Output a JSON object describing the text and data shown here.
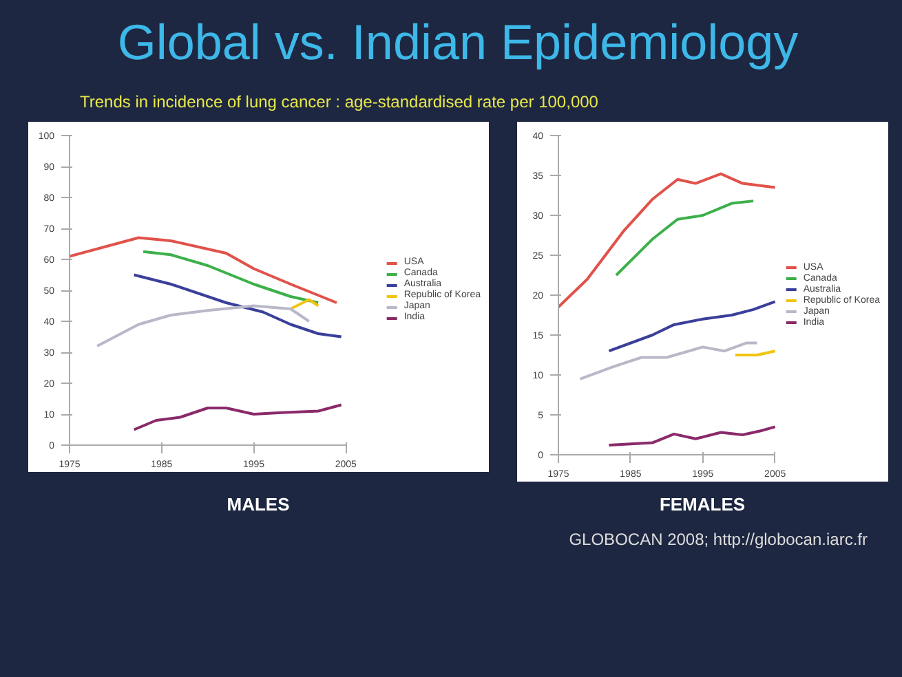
{
  "chart_data": [
    {
      "type": "line",
      "title": "Global vs. Indian Epidemiology",
      "subtitle": "Trends in incidence of lung cancer : age-standardised rate per 100,000",
      "xlabel": "MALES",
      "xlim": [
        1975,
        2005
      ],
      "xticks": [
        1975,
        1985,
        1995,
        2005
      ],
      "ylim": [
        0,
        100
      ],
      "yticks": [
        0,
        10,
        20,
        30,
        40,
        50,
        60,
        70,
        80,
        90,
        100
      ],
      "grid": false,
      "legend": "right",
      "series": [
        {
          "name": "USA",
          "color": "#e0524a",
          "x": [
            1975,
            1982.5,
            1986,
            1992,
            1995,
            1999,
            2004
          ],
          "values": [
            61,
            67,
            66,
            62,
            57,
            52,
            46
          ]
        },
        {
          "name": "Canada",
          "color": "#3cb04a",
          "x": [
            1983,
            1986,
            1990,
            1995,
            1999,
            2002
          ],
          "values": [
            62.5,
            61.5,
            58,
            52,
            48,
            46
          ]
        },
        {
          "name": "Australia",
          "color": "#3a3f9a",
          "x": [
            1982,
            1986,
            1992,
            1996,
            1999,
            2002,
            2004.5
          ],
          "values": [
            55,
            52,
            46,
            43,
            39,
            36,
            35
          ]
        },
        {
          "name": "Republic of Korea",
          "color": "#f2c40f",
          "x": [
            1999,
            2001,
            2002
          ],
          "values": [
            44,
            47,
            45
          ]
        },
        {
          "name": "Japan",
          "color": "#b8b8c8",
          "x": [
            1978,
            1982.5,
            1986,
            1990,
            1995,
            1999,
            2001
          ],
          "values": [
            32,
            39,
            42,
            43.5,
            45,
            44,
            40
          ]
        },
        {
          "name": "India",
          "color": "#8a2a6a",
          "x": [
            1982,
            1984.4,
            1987,
            1990,
            1992,
            1995,
            1998,
            2002,
            2004.5
          ],
          "values": [
            5,
            8,
            9,
            12,
            12,
            10,
            10.5,
            11,
            13
          ]
        }
      ]
    },
    {
      "type": "line",
      "xlabel": "FEMALES",
      "xlim": [
        1975,
        2005
      ],
      "xticks": [
        1975,
        1985,
        1995,
        2005
      ],
      "ylim": [
        0,
        40
      ],
      "yticks": [
        0,
        5,
        10,
        15,
        20,
        25,
        30,
        35,
        40
      ],
      "grid": false,
      "legend": "right",
      "annotations": [
        "GLOBOCAN 2008; http://globocan.iarc.fr"
      ],
      "series": [
        {
          "name": "USA",
          "color": "#e0524a",
          "x": [
            1975,
            1979,
            1984,
            1988,
            1991.5,
            1994,
            1997.5,
            2000.5,
            2005
          ],
          "values": [
            18.5,
            22,
            28,
            32,
            34.5,
            34,
            35.2,
            34,
            33.5
          ]
        },
        {
          "name": "Canada",
          "color": "#3cb04a",
          "x": [
            1983,
            1988,
            1991.5,
            1995,
            1999,
            2002
          ],
          "values": [
            22.5,
            27,
            29.5,
            30,
            31.5,
            31.8
          ]
        },
        {
          "name": "Australia",
          "color": "#3a3f9a",
          "x": [
            1982,
            1988,
            1991,
            1995,
            1999,
            2002,
            2005
          ],
          "values": [
            13,
            15,
            16.3,
            17,
            17.5,
            18.2,
            19.2
          ]
        },
        {
          "name": "Republic of Korea",
          "color": "#f2c40f",
          "x": [
            1999.5,
            2002.5,
            2005
          ],
          "values": [
            12.5,
            12.5,
            13
          ]
        },
        {
          "name": "Japan",
          "color": "#b8b8c8",
          "x": [
            1978,
            1982.5,
            1986.5,
            1990,
            1995,
            1998,
            2001,
            2002.5
          ],
          "values": [
            9.5,
            11,
            12.2,
            12.2,
            13.5,
            13,
            14,
            14
          ]
        },
        {
          "name": "India",
          "color": "#8a2a6a",
          "x": [
            1982,
            1988,
            1991,
            1994,
            1997.5,
            2000.5,
            2003,
            2005
          ],
          "values": [
            1.2,
            1.5,
            2.6,
            2,
            2.8,
            2.5,
            3,
            3.5
          ]
        }
      ]
    }
  ]
}
